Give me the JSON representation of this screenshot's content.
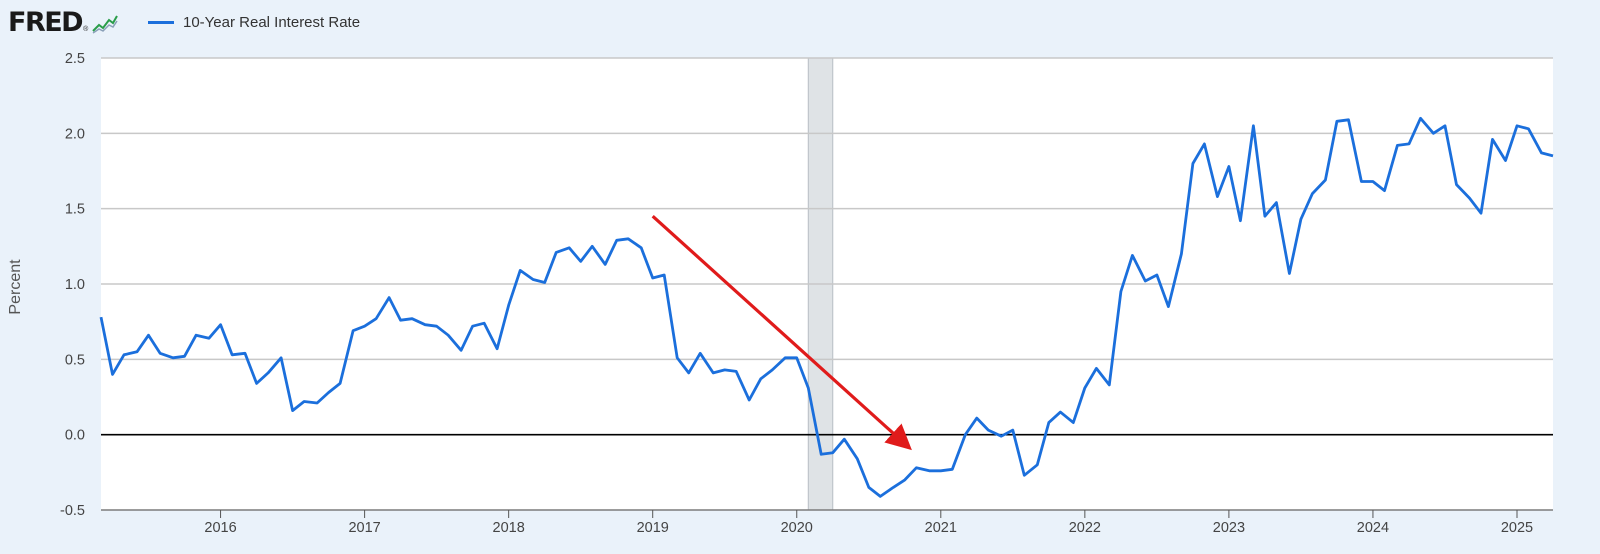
{
  "logo": {
    "text": "FRED",
    "registered": "®"
  },
  "colors": {
    "series": "#1b6fdc",
    "arrow": "#e01b1b",
    "recession": "#dfe3e6",
    "grid": "#c8c8c8",
    "zero_line": "#000000"
  },
  "chart_data": {
    "type": "line",
    "title": "",
    "xlabel": "",
    "ylabel": "Percent",
    "legend": {
      "position": "top-left",
      "entries": [
        "10-Year Real Interest Rate"
      ]
    },
    "grid": true,
    "xlim": [
      2015.17,
      2025.25
    ],
    "ylim": [
      -0.5,
      2.5
    ],
    "yticks": [
      -0.5,
      0.0,
      0.5,
      1.0,
      1.5,
      2.0,
      2.5
    ],
    "ytick_labels": [
      "-0.5",
      "0.0",
      "0.5",
      "1.0",
      "1.5",
      "2.0",
      "2.5"
    ],
    "xticks": [
      2016,
      2017,
      2018,
      2019,
      2020,
      2021,
      2022,
      2023,
      2024,
      2025
    ],
    "xtick_labels": [
      "2016",
      "2017",
      "2018",
      "2019",
      "2020",
      "2021",
      "2022",
      "2023",
      "2024",
      "2025"
    ],
    "recession_shading": [
      [
        2020.08,
        2020.25
      ]
    ],
    "annotations": [
      {
        "type": "arrow",
        "from": [
          2019.0,
          1.45
        ],
        "to": [
          2020.75,
          -0.06
        ],
        "color": "#e01b1b"
      }
    ],
    "series": [
      {
        "name": "10-Year Real Interest Rate",
        "color": "#1b6fdc",
        "x": [
          2015.17,
          2015.25,
          2015.33,
          2015.42,
          2015.5,
          2015.58,
          2015.67,
          2015.75,
          2015.83,
          2015.92,
          2016.0,
          2016.08,
          2016.17,
          2016.25,
          2016.33,
          2016.42,
          2016.5,
          2016.58,
          2016.67,
          2016.75,
          2016.83,
          2016.92,
          2017.0,
          2017.08,
          2017.17,
          2017.25,
          2017.33,
          2017.42,
          2017.5,
          2017.58,
          2017.67,
          2017.75,
          2017.83,
          2017.92,
          2018.0,
          2018.08,
          2018.17,
          2018.25,
          2018.33,
          2018.42,
          2018.5,
          2018.58,
          2018.67,
          2018.75,
          2018.83,
          2018.92,
          2019.0,
          2019.08,
          2019.17,
          2019.25,
          2019.33,
          2019.42,
          2019.5,
          2019.58,
          2019.67,
          2019.75,
          2019.83,
          2019.92,
          2020.0,
          2020.08,
          2020.17,
          2020.25,
          2020.33,
          2020.42,
          2020.5,
          2020.58,
          2020.67,
          2020.75,
          2020.83,
          2020.92,
          2021.0,
          2021.08,
          2021.17,
          2021.25,
          2021.33,
          2021.42,
          2021.5,
          2021.58,
          2021.67,
          2021.75,
          2021.83,
          2021.92,
          2022.0,
          2022.08,
          2022.17,
          2022.25,
          2022.33,
          2022.42,
          2022.5,
          2022.58,
          2022.67,
          2022.75,
          2022.83,
          2022.92,
          2023.0,
          2023.08,
          2023.17,
          2023.25,
          2023.33,
          2023.42,
          2023.5,
          2023.58,
          2023.67,
          2023.75,
          2023.83,
          2023.92,
          2024.0,
          2024.08,
          2024.17,
          2024.25,
          2024.33,
          2024.42,
          2024.5,
          2024.58,
          2024.67,
          2024.75,
          2024.83,
          2024.92,
          2025.0,
          2025.08,
          2025.17,
          2025.25
        ],
        "values": [
          0.78,
          0.4,
          0.53,
          0.55,
          0.66,
          0.54,
          0.51,
          0.52,
          0.66,
          0.64,
          0.73,
          0.53,
          0.54,
          0.34,
          0.41,
          0.51,
          0.16,
          0.22,
          0.21,
          0.28,
          0.34,
          0.69,
          0.72,
          0.77,
          0.91,
          0.76,
          0.77,
          0.73,
          0.72,
          0.66,
          0.56,
          0.72,
          0.74,
          0.57,
          0.86,
          1.09,
          1.03,
          1.01,
          1.21,
          1.24,
          1.15,
          1.25,
          1.13,
          1.29,
          1.3,
          1.24,
          1.04,
          1.06,
          0.51,
          0.41,
          0.54,
          0.41,
          0.43,
          0.42,
          0.23,
          0.37,
          0.43,
          0.51,
          0.51,
          0.31,
          -0.13,
          -0.12,
          -0.03,
          -0.16,
          -0.35,
          -0.41,
          -0.35,
          -0.3,
          -0.22,
          -0.24,
          -0.24,
          -0.23,
          0.0,
          0.11,
          0.03,
          -0.01,
          0.03,
          -0.27,
          -0.2,
          0.08,
          0.15,
          0.08,
          0.31,
          0.44,
          0.33,
          0.95,
          1.19,
          1.02,
          1.06,
          0.85,
          1.2,
          1.8,
          1.93,
          1.58,
          1.78,
          1.42,
          2.05,
          1.45,
          1.54,
          1.07,
          1.43,
          1.6,
          1.69,
          2.08,
          2.09,
          1.68,
          1.68,
          1.62,
          1.92,
          1.93,
          2.1,
          2.0,
          2.05,
          1.66,
          1.57,
          1.47,
          1.96,
          1.82,
          2.05,
          2.03,
          1.87,
          1.85
        ]
      }
    ]
  }
}
